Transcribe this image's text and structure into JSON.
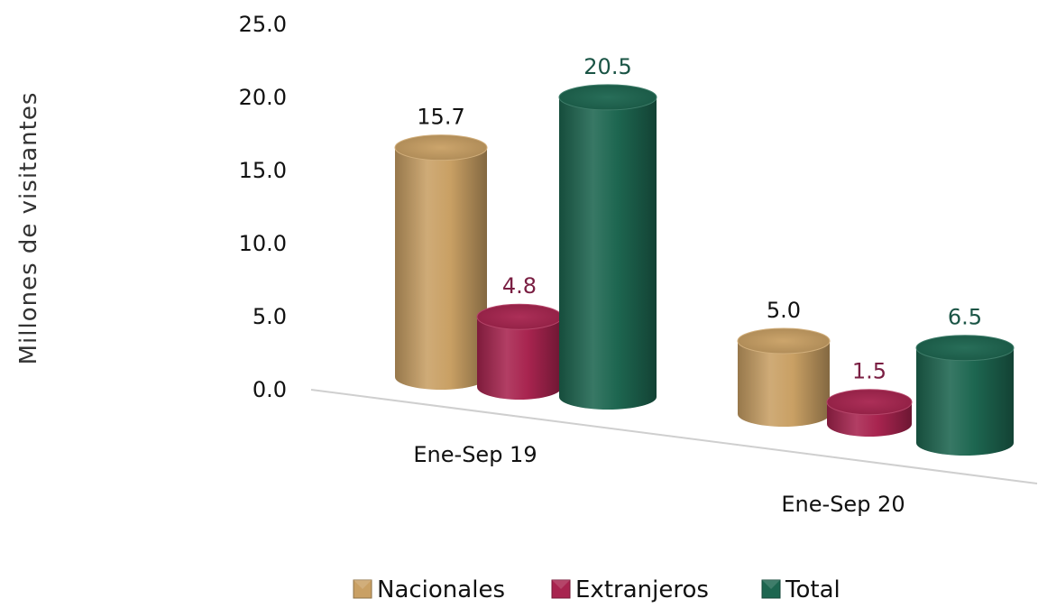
{
  "chart_data": {
    "type": "bar",
    "title": "",
    "ylabel": "Millones de visitantes",
    "xlabel": "",
    "ylim": [
      0,
      25
    ],
    "yticks": [
      "0.0",
      "5.0",
      "10.0",
      "15.0",
      "20.0",
      "25.0"
    ],
    "categories": [
      "Ene-Sep 19",
      "Ene-Sep 20"
    ],
    "series": [
      {
        "name": "Nacionales",
        "values": [
          15.7,
          5.0
        ],
        "labels": [
          "15.7",
          "5.0"
        ],
        "color": "#c9a064",
        "label_color": "#111111"
      },
      {
        "name": "Extranjeros",
        "values": [
          4.8,
          1.5
        ],
        "labels": [
          "4.8",
          "1.5"
        ],
        "color": "#a8244f",
        "label_color": "#7a1e42"
      },
      {
        "name": "Total",
        "values": [
          20.5,
          6.5
        ],
        "labels": [
          "20.5",
          "6.5"
        ],
        "color": "#1d6650",
        "label_color": "#1a5445"
      }
    ],
    "legend_position": "bottom",
    "style": "3d-cylinder"
  }
}
